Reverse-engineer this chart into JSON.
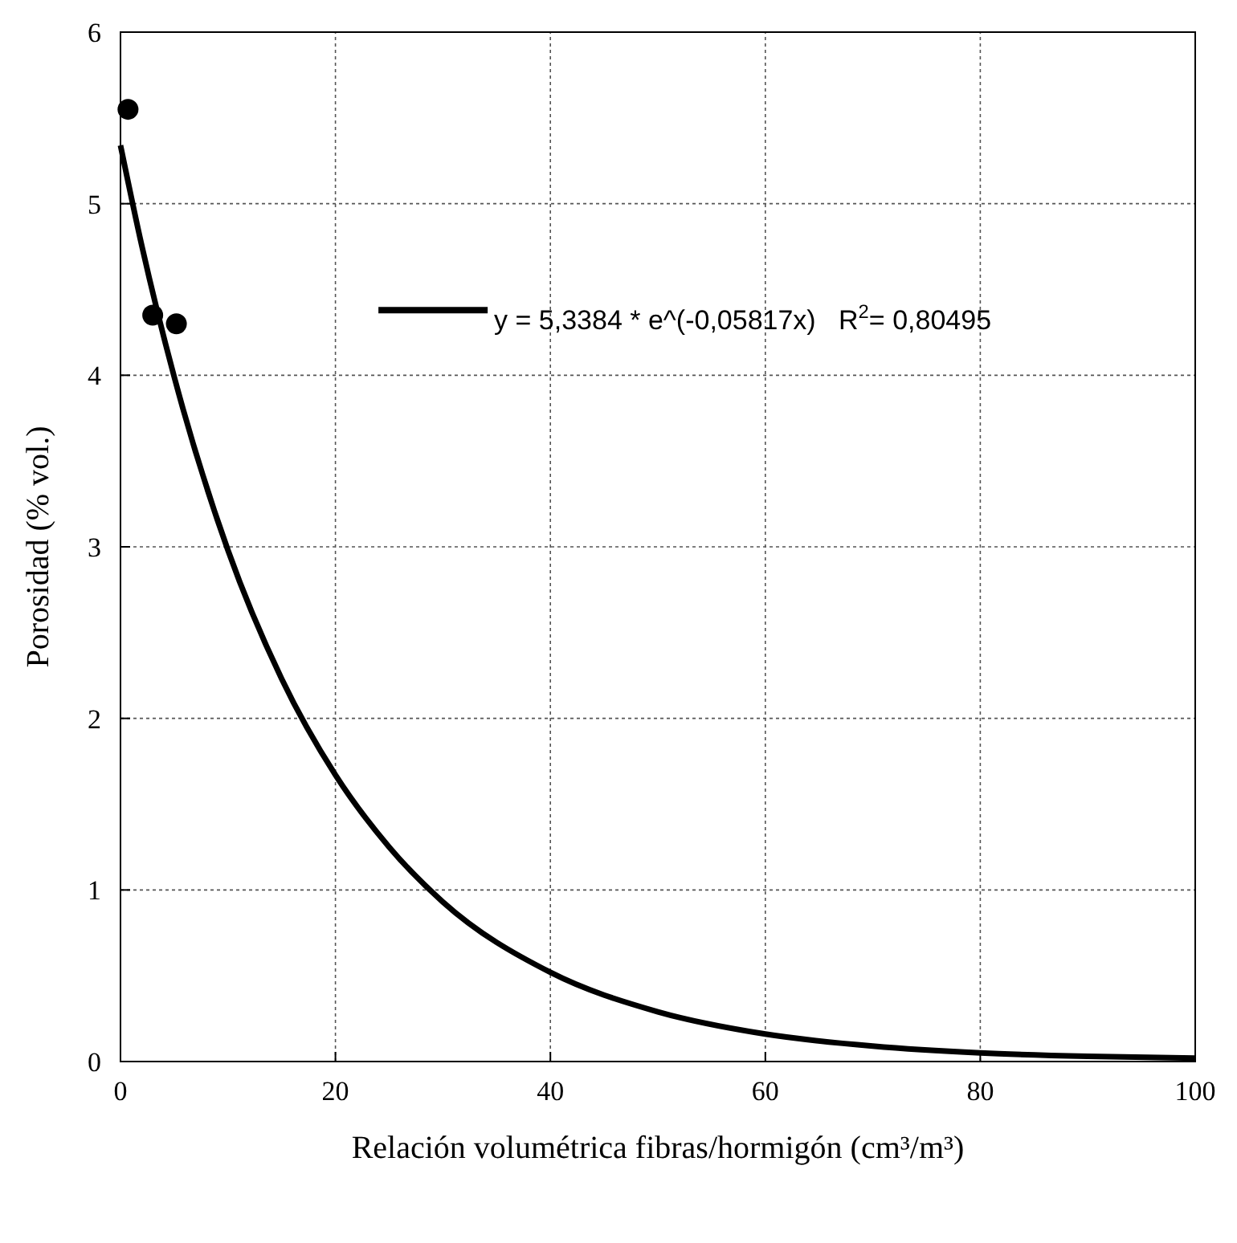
{
  "chart_data": {
    "type": "scatter",
    "xlabel": "Relación volumétrica fibras/hormigón (cm³/m³)",
    "ylabel": "Porosidad (% vol.)",
    "xlim": [
      0,
      100
    ],
    "xticks": [
      0,
      20,
      40,
      60,
      80,
      100
    ],
    "ylim": [
      0,
      6
    ],
    "yticks": [
      0,
      1,
      2,
      3,
      4,
      5,
      6
    ],
    "grid": true,
    "legend": "top right",
    "marker": "circle",
    "series": [
      {
        "color": "#000000",
        "x": [
          0.7,
          3,
          5.2
        ],
        "values": [
          5.55,
          4.35,
          4.3
        ]
      },
      {
        "type": "line",
        "name": "y = 5,3384 * e^(-0,05817x)   R$^{2}$= 0,80495",
        "color": "#000000",
        "line_style": "solid",
        "marker": "none",
        "x": [
          0,
          2,
          5,
          10,
          15,
          20,
          25,
          30,
          40,
          50,
          60,
          70,
          80,
          90,
          100
        ],
        "values": [
          5.34,
          4.75,
          3.99,
          2.98,
          2.23,
          1.67,
          1.25,
          0.93,
          0.52,
          0.29,
          0.16,
          0.09,
          0.05,
          0.03,
          0.02
        ]
      }
    ]
  }
}
